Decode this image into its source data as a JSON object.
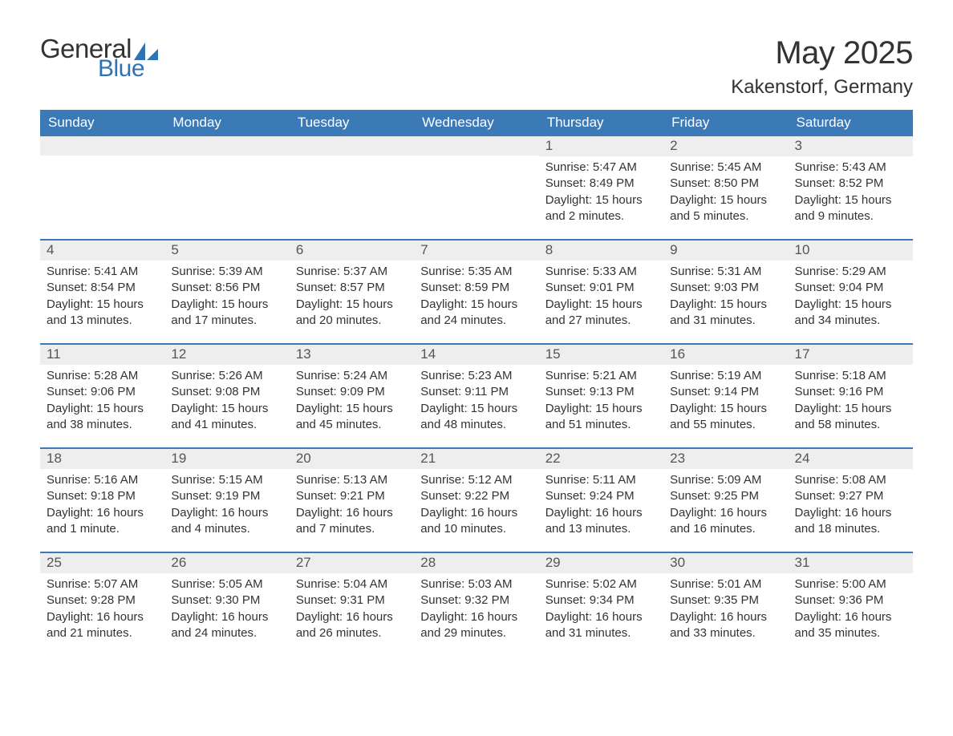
{
  "logo": {
    "text1": "General",
    "text2": "Blue",
    "sail_color": "#2f73b5"
  },
  "title": "May 2025",
  "location": "Kakenstorf, Germany",
  "colors": {
    "header_bg": "#3b79b7",
    "header_text": "#ffffff",
    "daynum_bg": "#eeeeee",
    "week_border": "#3b79b7",
    "body_text": "#333333"
  },
  "day_headers": [
    "Sunday",
    "Monday",
    "Tuesday",
    "Wednesday",
    "Thursday",
    "Friday",
    "Saturday"
  ],
  "weeks": [
    [
      {
        "n": "",
        "sunrise": "",
        "sunset": "",
        "daylight": ""
      },
      {
        "n": "",
        "sunrise": "",
        "sunset": "",
        "daylight": ""
      },
      {
        "n": "",
        "sunrise": "",
        "sunset": "",
        "daylight": ""
      },
      {
        "n": "",
        "sunrise": "",
        "sunset": "",
        "daylight": ""
      },
      {
        "n": "1",
        "sunrise": "Sunrise: 5:47 AM",
        "sunset": "Sunset: 8:49 PM",
        "daylight": "Daylight: 15 hours and 2 minutes."
      },
      {
        "n": "2",
        "sunrise": "Sunrise: 5:45 AM",
        "sunset": "Sunset: 8:50 PM",
        "daylight": "Daylight: 15 hours and 5 minutes."
      },
      {
        "n": "3",
        "sunrise": "Sunrise: 5:43 AM",
        "sunset": "Sunset: 8:52 PM",
        "daylight": "Daylight: 15 hours and 9 minutes."
      }
    ],
    [
      {
        "n": "4",
        "sunrise": "Sunrise: 5:41 AM",
        "sunset": "Sunset: 8:54 PM",
        "daylight": "Daylight: 15 hours and 13 minutes."
      },
      {
        "n": "5",
        "sunrise": "Sunrise: 5:39 AM",
        "sunset": "Sunset: 8:56 PM",
        "daylight": "Daylight: 15 hours and 17 minutes."
      },
      {
        "n": "6",
        "sunrise": "Sunrise: 5:37 AM",
        "sunset": "Sunset: 8:57 PM",
        "daylight": "Daylight: 15 hours and 20 minutes."
      },
      {
        "n": "7",
        "sunrise": "Sunrise: 5:35 AM",
        "sunset": "Sunset: 8:59 PM",
        "daylight": "Daylight: 15 hours and 24 minutes."
      },
      {
        "n": "8",
        "sunrise": "Sunrise: 5:33 AM",
        "sunset": "Sunset: 9:01 PM",
        "daylight": "Daylight: 15 hours and 27 minutes."
      },
      {
        "n": "9",
        "sunrise": "Sunrise: 5:31 AM",
        "sunset": "Sunset: 9:03 PM",
        "daylight": "Daylight: 15 hours and 31 minutes."
      },
      {
        "n": "10",
        "sunrise": "Sunrise: 5:29 AM",
        "sunset": "Sunset: 9:04 PM",
        "daylight": "Daylight: 15 hours and 34 minutes."
      }
    ],
    [
      {
        "n": "11",
        "sunrise": "Sunrise: 5:28 AM",
        "sunset": "Sunset: 9:06 PM",
        "daylight": "Daylight: 15 hours and 38 minutes."
      },
      {
        "n": "12",
        "sunrise": "Sunrise: 5:26 AM",
        "sunset": "Sunset: 9:08 PM",
        "daylight": "Daylight: 15 hours and 41 minutes."
      },
      {
        "n": "13",
        "sunrise": "Sunrise: 5:24 AM",
        "sunset": "Sunset: 9:09 PM",
        "daylight": "Daylight: 15 hours and 45 minutes."
      },
      {
        "n": "14",
        "sunrise": "Sunrise: 5:23 AM",
        "sunset": "Sunset: 9:11 PM",
        "daylight": "Daylight: 15 hours and 48 minutes."
      },
      {
        "n": "15",
        "sunrise": "Sunrise: 5:21 AM",
        "sunset": "Sunset: 9:13 PM",
        "daylight": "Daylight: 15 hours and 51 minutes."
      },
      {
        "n": "16",
        "sunrise": "Sunrise: 5:19 AM",
        "sunset": "Sunset: 9:14 PM",
        "daylight": "Daylight: 15 hours and 55 minutes."
      },
      {
        "n": "17",
        "sunrise": "Sunrise: 5:18 AM",
        "sunset": "Sunset: 9:16 PM",
        "daylight": "Daylight: 15 hours and 58 minutes."
      }
    ],
    [
      {
        "n": "18",
        "sunrise": "Sunrise: 5:16 AM",
        "sunset": "Sunset: 9:18 PM",
        "daylight": "Daylight: 16 hours and 1 minute."
      },
      {
        "n": "19",
        "sunrise": "Sunrise: 5:15 AM",
        "sunset": "Sunset: 9:19 PM",
        "daylight": "Daylight: 16 hours and 4 minutes."
      },
      {
        "n": "20",
        "sunrise": "Sunrise: 5:13 AM",
        "sunset": "Sunset: 9:21 PM",
        "daylight": "Daylight: 16 hours and 7 minutes."
      },
      {
        "n": "21",
        "sunrise": "Sunrise: 5:12 AM",
        "sunset": "Sunset: 9:22 PM",
        "daylight": "Daylight: 16 hours and 10 minutes."
      },
      {
        "n": "22",
        "sunrise": "Sunrise: 5:11 AM",
        "sunset": "Sunset: 9:24 PM",
        "daylight": "Daylight: 16 hours and 13 minutes."
      },
      {
        "n": "23",
        "sunrise": "Sunrise: 5:09 AM",
        "sunset": "Sunset: 9:25 PM",
        "daylight": "Daylight: 16 hours and 16 minutes."
      },
      {
        "n": "24",
        "sunrise": "Sunrise: 5:08 AM",
        "sunset": "Sunset: 9:27 PM",
        "daylight": "Daylight: 16 hours and 18 minutes."
      }
    ],
    [
      {
        "n": "25",
        "sunrise": "Sunrise: 5:07 AM",
        "sunset": "Sunset: 9:28 PM",
        "daylight": "Daylight: 16 hours and 21 minutes."
      },
      {
        "n": "26",
        "sunrise": "Sunrise: 5:05 AM",
        "sunset": "Sunset: 9:30 PM",
        "daylight": "Daylight: 16 hours and 24 minutes."
      },
      {
        "n": "27",
        "sunrise": "Sunrise: 5:04 AM",
        "sunset": "Sunset: 9:31 PM",
        "daylight": "Daylight: 16 hours and 26 minutes."
      },
      {
        "n": "28",
        "sunrise": "Sunrise: 5:03 AM",
        "sunset": "Sunset: 9:32 PM",
        "daylight": "Daylight: 16 hours and 29 minutes."
      },
      {
        "n": "29",
        "sunrise": "Sunrise: 5:02 AM",
        "sunset": "Sunset: 9:34 PM",
        "daylight": "Daylight: 16 hours and 31 minutes."
      },
      {
        "n": "30",
        "sunrise": "Sunrise: 5:01 AM",
        "sunset": "Sunset: 9:35 PM",
        "daylight": "Daylight: 16 hours and 33 minutes."
      },
      {
        "n": "31",
        "sunrise": "Sunrise: 5:00 AM",
        "sunset": "Sunset: 9:36 PM",
        "daylight": "Daylight: 16 hours and 35 minutes."
      }
    ]
  ]
}
